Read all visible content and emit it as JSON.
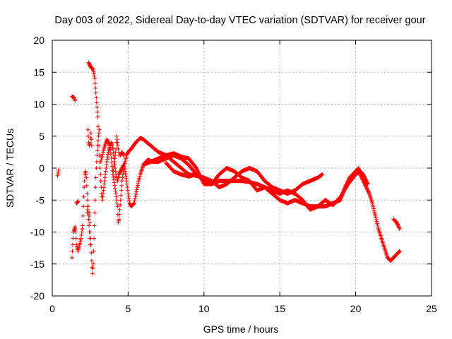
{
  "chart_data": {
    "type": "scatter",
    "title": "Day 003 of 2022, Sidereal Day-to-day VTEC variation (SDTVAR) for receiver gour",
    "xlabel": "GPS time / hours",
    "ylabel": "SDTVAR / TECUs",
    "xlim": [
      0,
      25
    ],
    "ylim": [
      -20,
      20
    ],
    "xticks": [
      0,
      5,
      10,
      15,
      20,
      25
    ],
    "yticks": [
      -20,
      -15,
      -10,
      -5,
      0,
      5,
      10,
      15,
      20
    ],
    "grid": true,
    "marker": "+",
    "series": [
      {
        "name": "SDTVAR",
        "color": "#ff0000",
        "tracks": [
          [
            [
              0.35,
              -1.2
            ],
            [
              0.42,
              -0.3
            ]
          ],
          [
            [
              1.3,
              -14
            ],
            [
              1.35,
              -12
            ],
            [
              1.4,
              -10
            ],
            [
              1.5,
              -9.2
            ],
            [
              1.55,
              -10
            ],
            [
              1.6,
              -12
            ],
            [
              1.7,
              -13
            ],
            [
              1.8,
              -12
            ],
            [
              1.9,
              -11
            ],
            [
              2.0,
              -9
            ],
            [
              2.05,
              -6
            ],
            [
              2.1,
              -3
            ],
            [
              2.15,
              -1
            ],
            [
              2.2,
              -0.5
            ],
            [
              2.25,
              -1.5
            ],
            [
              2.3,
              -4
            ],
            [
              2.35,
              -6
            ],
            [
              2.4,
              -8
            ],
            [
              2.45,
              -7
            ],
            [
              2.5,
              -10
            ],
            [
              2.55,
              -12
            ],
            [
              2.6,
              -14.5
            ],
            [
              2.65,
              -16.5
            ],
            [
              2.7,
              -15
            ],
            [
              2.75,
              -11
            ],
            [
              2.8,
              -7
            ],
            [
              2.85,
              -3
            ],
            [
              2.9,
              0
            ],
            [
              2.95,
              2
            ],
            [
              3.0,
              3.5
            ],
            [
              3.05,
              5
            ],
            [
              3.1,
              6
            ]
          ],
          [
            [
              1.3,
              11.2
            ],
            [
              1.45,
              11
            ],
            [
              1.5,
              10.6
            ]
          ],
          [
            [
              1.6,
              -5.5
            ],
            [
              1.7,
              -5.2
            ]
          ],
          [
            [
              2.3,
              -7
            ],
            [
              2.35,
              -6
            ],
            [
              2.4,
              -8
            ],
            [
              2.45,
              -10
            ],
            [
              2.5,
              -12
            ]
          ],
          [
            [
              2.35,
              6
            ],
            [
              2.4,
              4
            ],
            [
              2.45,
              3.5
            ],
            [
              2.5,
              4
            ],
            [
              2.55,
              5.5
            ],
            [
              2.6,
              3.5
            ]
          ],
          [
            [
              2.4,
              16.5
            ],
            [
              2.5,
              16
            ],
            [
              2.6,
              15.6
            ],
            [
              2.7,
              15.5
            ],
            [
              2.8,
              14
            ],
            [
              2.85,
              12.5
            ],
            [
              2.9,
              11
            ],
            [
              2.95,
              9.5
            ],
            [
              3.0,
              8
            ],
            [
              3.05,
              5
            ],
            [
              3.1,
              2
            ],
            [
              3.15,
              0
            ],
            [
              3.2,
              -2
            ],
            [
              3.25,
              -4
            ],
            [
              3.3,
              -5
            ],
            [
              3.4,
              -3
            ],
            [
              3.5,
              -1
            ],
            [
              3.6,
              1
            ],
            [
              3.7,
              2.5
            ],
            [
              3.8,
              3.5
            ],
            [
              3.9,
              4
            ],
            [
              4.0,
              3
            ],
            [
              4.1,
              1
            ],
            [
              4.2,
              -1
            ],
            [
              4.3,
              -2
            ],
            [
              4.4,
              -1
            ],
            [
              4.5,
              -0.5
            ],
            [
              4.6,
              0
            ],
            [
              4.7,
              0.5
            ],
            [
              4.8,
              -0.5
            ],
            [
              4.9,
              -2
            ],
            [
              5.0,
              -4
            ],
            [
              5.1,
              -5.5
            ],
            [
              5.2,
              -6
            ],
            [
              5.4,
              -5.5
            ],
            [
              5.6,
              -3
            ],
            [
              5.8,
              -1
            ],
            [
              6.0,
              0.5
            ],
            [
              6.3,
              1.3
            ],
            [
              6.6,
              1
            ],
            [
              7.0,
              1
            ],
            [
              7.5,
              1.5
            ],
            [
              8.0,
              2
            ],
            [
              8.5,
              1.5
            ],
            [
              9.0,
              0.5
            ],
            [
              9.5,
              -1
            ],
            [
              10.0,
              -2
            ],
            [
              10.5,
              -2.5
            ],
            [
              11.0,
              -2
            ],
            [
              11.5,
              -2
            ],
            [
              12.0,
              -2
            ],
            [
              12.5,
              -2
            ],
            [
              13.0,
              -2.2
            ],
            [
              13.5,
              -2.5
            ],
            [
              14.0,
              -3
            ],
            [
              14.5,
              -4
            ],
            [
              15.0,
              -5
            ],
            [
              15.5,
              -5.5
            ],
            [
              16.0,
              -5
            ],
            [
              16.5,
              -5.5
            ],
            [
              17.0,
              -6
            ],
            [
              17.5,
              -6
            ],
            [
              18.0,
              -6
            ],
            [
              18.5,
              -5.5
            ],
            [
              19.0,
              -5
            ],
            [
              19.3,
              -3
            ],
            [
              19.6,
              -1.5
            ],
            [
              19.8,
              -1
            ],
            [
              20.0,
              -0.5
            ],
            [
              20.2,
              0
            ],
            [
              20.3,
              -1
            ],
            [
              20.5,
              -2
            ],
            [
              20.7,
              -3
            ],
            [
              20.9,
              -4
            ],
            [
              21.1,
              -5.5
            ],
            [
              21.3,
              -7.5
            ],
            [
              21.5,
              -9.5
            ],
            [
              21.7,
              -11
            ],
            [
              21.9,
              -12.5
            ],
            [
              22.1,
              -14
            ],
            [
              22.3,
              -14.5
            ],
            [
              22.5,
              -14
            ],
            [
              22.7,
              -13.5
            ],
            [
              22.9,
              -13
            ]
          ],
          [
            [
              3.2,
              1
            ],
            [
              3.4,
              3
            ],
            [
              3.6,
              4.5
            ],
            [
              3.8,
              3.5
            ],
            [
              4.0,
              -1
            ],
            [
              4.2,
              -4
            ],
            [
              4.3,
              -6
            ],
            [
              4.35,
              -8.5
            ],
            [
              4.4,
              -8
            ],
            [
              4.5,
              -5
            ],
            [
              4.6,
              -2
            ],
            [
              4.7,
              0
            ],
            [
              4.8,
              1
            ],
            [
              4.9,
              2
            ],
            [
              5.0,
              2.5
            ],
            [
              5.2,
              3
            ],
            [
              5.5,
              4
            ],
            [
              5.8,
              4.7
            ],
            [
              6.0,
              4.5
            ],
            [
              6.5,
              3.5
            ],
            [
              7.0,
              2.5
            ],
            [
              7.5,
              2
            ],
            [
              8.0,
              1
            ],
            [
              8.5,
              0
            ],
            [
              9.0,
              -1
            ],
            [
              9.5,
              -1.2
            ],
            [
              10.0,
              -1.5
            ],
            [
              10.5,
              -2
            ],
            [
              11.0,
              -3
            ],
            [
              11.5,
              -2.5
            ],
            [
              12.0,
              -1.5
            ],
            [
              12.5,
              -0.5
            ],
            [
              13.0,
              0
            ],
            [
              13.5,
              -0.5
            ],
            [
              14.0,
              -2
            ],
            [
              14.5,
              -3
            ],
            [
              15.0,
              -3.5
            ],
            [
              15.5,
              -4
            ],
            [
              16.0,
              -3.5
            ],
            [
              16.5,
              -2.5
            ],
            [
              17.0,
              -2
            ],
            [
              17.5,
              -1.5
            ],
            [
              17.8,
              -1
            ]
          ],
          [
            [
              4.0,
              -1
            ],
            [
              4.1,
              1
            ],
            [
              4.2,
              3
            ],
            [
              4.25,
              5
            ],
            [
              4.3,
              4
            ],
            [
              4.4,
              2
            ]
          ],
          [
            [
              4.5,
              2
            ],
            [
              4.6,
              2.5
            ],
            [
              4.7,
              2
            ]
          ],
          [
            [
              6.0,
              0.5
            ],
            [
              6.5,
              1
            ],
            [
              7.0,
              1.5
            ],
            [
              7.5,
              2
            ],
            [
              8.0,
              2.3
            ],
            [
              8.5,
              1.8
            ],
            [
              9.0,
              1.5
            ],
            [
              9.5,
              0
            ],
            [
              10.0,
              -2.5
            ],
            [
              10.5,
              -2.5
            ],
            [
              11.0,
              -1
            ],
            [
              11.5,
              0
            ],
            [
              12.0,
              -0.5
            ],
            [
              12.5,
              -1.5
            ],
            [
              13.0,
              -2
            ],
            [
              13.5,
              -3.5
            ],
            [
              14.0,
              -3
            ],
            [
              14.5,
              -3.5
            ],
            [
              15.0,
              -4
            ],
            [
              15.5,
              -3.5
            ],
            [
              16.0,
              -4
            ],
            [
              16.5,
              -5
            ],
            [
              17.0,
              -6.5
            ],
            [
              17.5,
              -6
            ],
            [
              18.0,
              -5
            ],
            [
              18.5,
              -5.8
            ],
            [
              19.0,
              -4.5
            ],
            [
              19.5,
              -2.5
            ],
            [
              20.0,
              -1
            ],
            [
              20.3,
              -0.5
            ],
            [
              20.5,
              -1
            ],
            [
              20.8,
              -2.5
            ]
          ],
          [
            [
              7.5,
              0.8
            ],
            [
              8.0,
              -0.5
            ],
            [
              8.5,
              -1
            ],
            [
              9.0,
              -1.3
            ],
            [
              9.5,
              -1
            ]
          ],
          [
            [
              22.5,
              -8
            ],
            [
              22.7,
              -8.5
            ],
            [
              22.9,
              -9.5
            ]
          ]
        ]
      }
    ]
  }
}
